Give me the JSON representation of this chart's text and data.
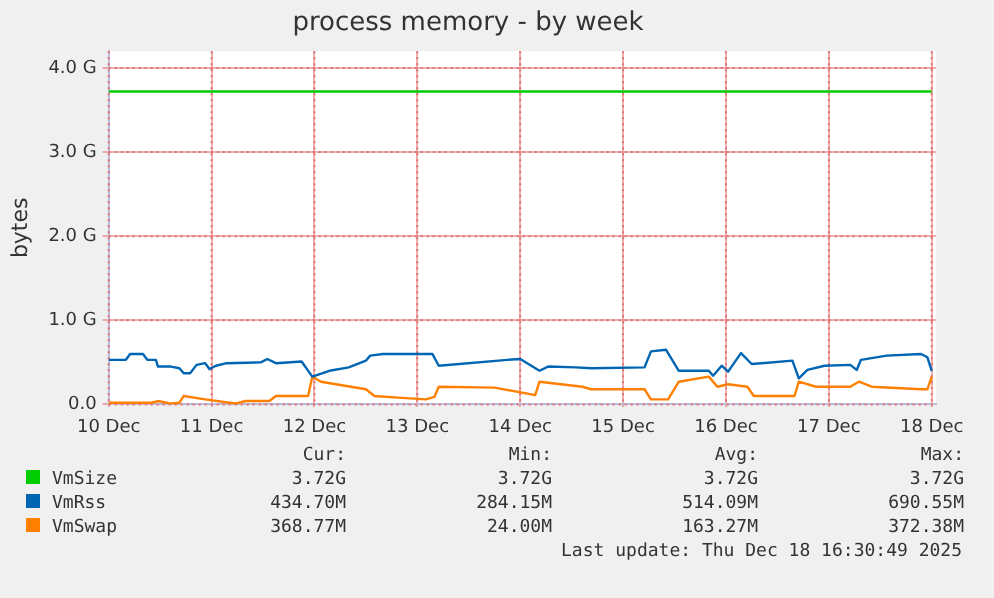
{
  "chart_data": {
    "type": "line",
    "title": "process memory - by week",
    "ylabel": "bytes",
    "xlim": [
      "2025-12-10T00:00",
      "2025-12-18T01:00"
    ],
    "xticks": [
      {
        "value": "2025-12-10",
        "label": "10 Dec"
      },
      {
        "value": "2025-12-11",
        "label": "11 Dec"
      },
      {
        "value": "2025-12-12",
        "label": "12 Dec"
      },
      {
        "value": "2025-12-13",
        "label": "13 Dec"
      },
      {
        "value": "2025-12-14",
        "label": "14 Dec"
      },
      {
        "value": "2025-12-15",
        "label": "15 Dec"
      },
      {
        "value": "2025-12-16",
        "label": "16 Dec"
      },
      {
        "value": "2025-12-17",
        "label": "17 Dec"
      },
      {
        "value": "2025-12-18",
        "label": "18 Dec"
      }
    ],
    "ylim": [
      0,
      4.2
    ],
    "yticks": [
      {
        "value": 0,
        "label": "0.0"
      },
      {
        "value": 1,
        "label": "1.0 G"
      },
      {
        "value": 2,
        "label": "2.0 G"
      },
      {
        "value": 3,
        "label": "3.0 G"
      },
      {
        "value": 4,
        "label": "4.0 G"
      }
    ],
    "grid": true,
    "legend": "bottom",
    "marker": "none",
    "line_style": "solid",
    "series": [
      {
        "name": "VmSize",
        "color": "#00cc00",
        "x": [
          "2025-12-10T00:00",
          "2025-12-18T00:00"
        ],
        "values": [
          3.72,
          3.72
        ]
      },
      {
        "name": "VmRss",
        "color": "#0066b3",
        "x": [
          "2025-12-10T00:00",
          "2025-12-10T04:00",
          "2025-12-10T05:00",
          "2025-12-10T08:00",
          "2025-12-10T09:00",
          "2025-12-10T11:00",
          "2025-12-10T11:30",
          "2025-12-10T14:30",
          "2025-12-10T16:30",
          "2025-12-10T17:30",
          "2025-12-10T19:00",
          "2025-12-10T20:30",
          "2025-12-10T22:30",
          "2025-12-10T23:30",
          "2025-12-11T01:00",
          "2025-12-11T03:30",
          "2025-12-11T11:30",
          "2025-12-11T13:00",
          "2025-12-11T15:00",
          "2025-12-11T21:00",
          "2025-12-11T23:30",
          "2025-12-12T03:30",
          "2025-12-12T08:00",
          "2025-12-12T12:00",
          "2025-12-12T13:00",
          "2025-12-12T16:00",
          "2025-12-13T03:30",
          "2025-12-13T05:00",
          "2025-12-13T21:00",
          "2025-12-14T00:00",
          "2025-12-14T04:30",
          "2025-12-14T06:30",
          "2025-12-14T13:00",
          "2025-12-14T16:30",
          "2025-12-15T05:00",
          "2025-12-15T06:30",
          "2025-12-15T10:00",
          "2025-12-15T13:00",
          "2025-12-15T20:00",
          "2025-12-15T21:00",
          "2025-12-15T23:00",
          "2025-12-16T00:30",
          "2025-12-16T03:30",
          "2025-12-16T06:00",
          "2025-12-16T15:30",
          "2025-12-16T17:00",
          "2025-12-16T19:00",
          "2025-12-16T23:00",
          "2025-12-17T05:00",
          "2025-12-17T06:30",
          "2025-12-17T07:30",
          "2025-12-17T13:30",
          "2025-12-17T21:30",
          "2025-12-17T23:00",
          "2025-12-18T00:00"
        ],
        "values": [
          0.53,
          0.53,
          0.6,
          0.6,
          0.53,
          0.53,
          0.45,
          0.45,
          0.43,
          0.37,
          0.37,
          0.47,
          0.49,
          0.42,
          0.46,
          0.49,
          0.5,
          0.54,
          0.49,
          0.51,
          0.33,
          0.4,
          0.44,
          0.52,
          0.58,
          0.6,
          0.6,
          0.46,
          0.53,
          0.54,
          0.4,
          0.45,
          0.44,
          0.43,
          0.44,
          0.63,
          0.65,
          0.4,
          0.4,
          0.34,
          0.46,
          0.39,
          0.61,
          0.48,
          0.52,
          0.31,
          0.41,
          0.46,
          0.47,
          0.41,
          0.53,
          0.58,
          0.6,
          0.56,
          0.4
        ]
      },
      {
        "name": "VmSwap",
        "color": "#ff8000",
        "x": [
          "2025-12-10T00:00",
          "2025-12-10T10:00",
          "2025-12-10T11:30",
          "2025-12-10T14:30",
          "2025-12-10T16:30",
          "2025-12-10T17:30",
          "2025-12-10T22:30",
          "2025-12-11T05:30",
          "2025-12-11T08:00",
          "2025-12-11T13:30",
          "2025-12-11T15:00",
          "2025-12-11T22:30",
          "2025-12-11T23:30",
          "2025-12-12T01:30",
          "2025-12-12T12:00",
          "2025-12-12T14:00",
          "2025-12-12T19:30",
          "2025-12-13T02:00",
          "2025-12-13T04:00",
          "2025-12-13T05:00",
          "2025-12-13T18:00",
          "2025-12-14T03:30",
          "2025-12-14T04:30",
          "2025-12-14T14:30",
          "2025-12-14T16:30",
          "2025-12-15T05:00",
          "2025-12-15T06:30",
          "2025-12-15T10:30",
          "2025-12-15T13:00",
          "2025-12-15T20:00",
          "2025-12-15T22:00",
          "2025-12-16T00:30",
          "2025-12-16T05:00",
          "2025-12-16T06:30",
          "2025-12-16T16:00",
          "2025-12-16T17:00",
          "2025-12-16T21:00",
          "2025-12-17T05:00",
          "2025-12-17T07:00",
          "2025-12-17T10:00",
          "2025-12-17T21:30",
          "2025-12-17T23:00",
          "2025-12-18T00:00"
        ],
        "values": [
          0.02,
          0.02,
          0.04,
          0.01,
          0.02,
          0.1,
          0.06,
          0.01,
          0.04,
          0.04,
          0.1,
          0.1,
          0.33,
          0.27,
          0.18,
          0.1,
          0.08,
          0.06,
          0.09,
          0.21,
          0.2,
          0.11,
          0.27,
          0.21,
          0.18,
          0.18,
          0.06,
          0.06,
          0.27,
          0.33,
          0.21,
          0.24,
          0.21,
          0.1,
          0.1,
          0.27,
          0.21,
          0.21,
          0.27,
          0.21,
          0.18,
          0.18,
          0.33
        ]
      }
    ],
    "annotations": [
      "Cur:",
      "Min:",
      "Avg:",
      "Max:",
      "3.72G",
      "3.72G",
      "3.72G",
      "3.72G",
      "434.70M",
      "284.15M",
      "514.09M",
      "690.55M",
      "368.77M",
      "24.00M",
      "163.27M",
      "372.38M",
      "Last update: Thu Dec 18 16:30:49 2025"
    ]
  }
}
